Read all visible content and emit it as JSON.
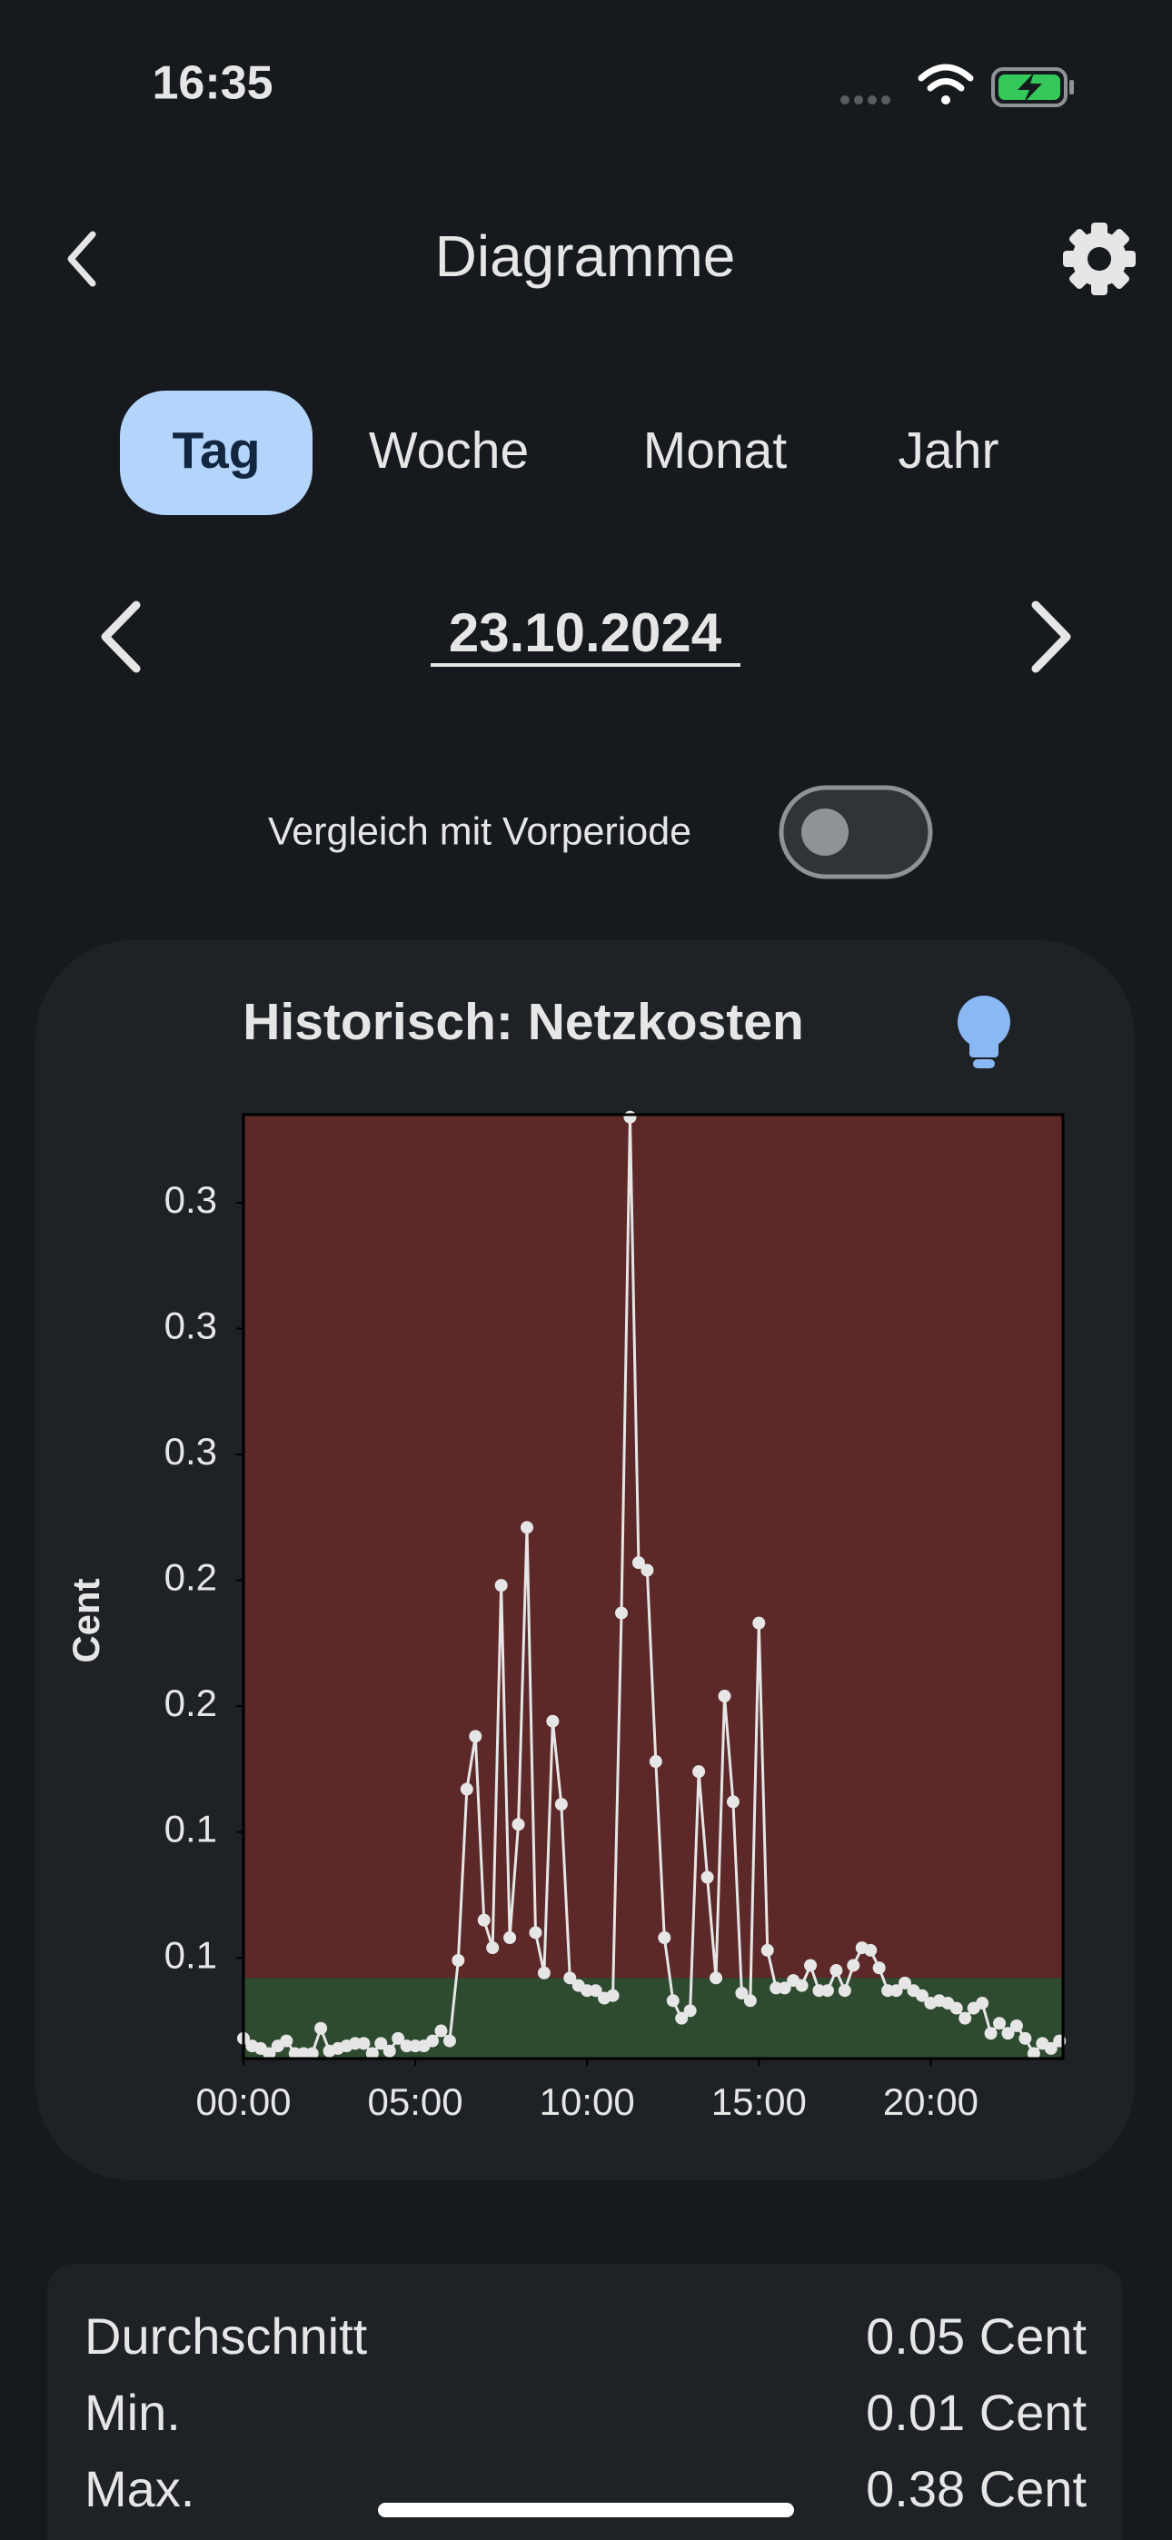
{
  "status": {
    "time": "16:35"
  },
  "header": {
    "title": "Diagramme"
  },
  "tabs": [
    "Tag",
    "Woche",
    "Monat",
    "Jahr"
  ],
  "date": "23.10.2024",
  "toggle": {
    "label": "Vergleich mit Vorperiode"
  },
  "chart_data": {
    "type": "line",
    "title": "Historisch: Netzkosten",
    "y_label": "Cent",
    "x": [
      0,
      0.25,
      0.5,
      0.75,
      1,
      1.25,
      1.5,
      1.75,
      2,
      2.25,
      2.5,
      2.75,
      3,
      3.25,
      3.5,
      3.75,
      4,
      4.25,
      4.5,
      4.75,
      5,
      5.25,
      5.5,
      5.75,
      6,
      6.25,
      6.5,
      6.75,
      7,
      7.25,
      7.5,
      7.75,
      8,
      8.25,
      8.5,
      8.75,
      9,
      9.25,
      9.5,
      9.75,
      10,
      10.25,
      10.5,
      10.75,
      11,
      11.25,
      11.5,
      11.75,
      12,
      12.25,
      12.5,
      12.75,
      13,
      13.25,
      13.5,
      13.75,
      14,
      14.25,
      14.5,
      14.75,
      15,
      15.25,
      15.5,
      15.75,
      16,
      16.25,
      16.5,
      16.75,
      17,
      17.25,
      17.5,
      17.75,
      18,
      18.25,
      18.5,
      18.75,
      19,
      19.25,
      19.5,
      19.75,
      20,
      20.25,
      20.5,
      20.75,
      21,
      21.25,
      21.5,
      21.75,
      22,
      22.25,
      22.5,
      22.75,
      23,
      23.25,
      23.5,
      23.75
    ],
    "series": [
      {
        "name": "Netzkosten",
        "color": "#e6e6e6",
        "values": [
          0.018,
          0.015,
          0.014,
          0.012,
          0.015,
          0.017,
          0.012,
          0.012,
          0.012,
          0.022,
          0.013,
          0.014,
          0.015,
          0.016,
          0.016,
          0.012,
          0.016,
          0.013,
          0.018,
          0.015,
          0.015,
          0.015,
          0.017,
          0.021,
          0.017,
          0.049,
          0.117,
          0.138,
          0.065,
          0.054,
          0.198,
          0.058,
          0.103,
          0.221,
          0.06,
          0.044,
          0.144,
          0.111,
          0.042,
          0.039,
          0.037,
          0.037,
          0.034,
          0.035,
          0.187,
          0.384,
          0.207,
          0.204,
          0.128,
          0.058,
          0.033,
          0.026,
          0.029,
          0.124,
          0.082,
          0.042,
          0.154,
          0.112,
          0.036,
          0.033,
          0.183,
          0.053,
          0.038,
          0.038,
          0.041,
          0.039,
          0.047,
          0.037,
          0.037,
          0.045,
          0.037,
          0.047,
          0.054,
          0.053,
          0.046,
          0.037,
          0.037,
          0.04,
          0.037,
          0.035,
          0.032,
          0.033,
          0.032,
          0.03,
          0.026,
          0.03,
          0.032,
          0.02,
          0.024,
          0.02,
          0.023,
          0.018,
          0.012,
          0.016,
          0.014,
          0.017
        ]
      }
    ],
    "xlim": [
      0,
      23.85
    ],
    "xticks": [
      {
        "value": 0,
        "label": "00:00"
      },
      {
        "value": 5,
        "label": "05:00"
      },
      {
        "value": 10,
        "label": "10:00"
      },
      {
        "value": 15,
        "label": "15:00"
      },
      {
        "value": 20,
        "label": "20:00"
      }
    ],
    "ylim": [
      0.01,
      0.385
    ],
    "yticks": [
      {
        "value": 0.05,
        "label": "0.1"
      },
      {
        "value": 0.1,
        "label": "0.1"
      },
      {
        "value": 0.15,
        "label": "0.2"
      },
      {
        "value": 0.2,
        "label": "0.2"
      },
      {
        "value": 0.25,
        "label": "0.3"
      },
      {
        "value": 0.3,
        "label": "0.3"
      },
      {
        "value": 0.35,
        "label": "0.3"
      }
    ],
    "grid": false,
    "threshold": 0.042,
    "below_color": "#2e4a2f",
    "above_color": "#5c2828"
  },
  "stats": [
    {
      "label": "Durchschnitt",
      "value": "0.05 Cent"
    },
    {
      "label": "Min.",
      "value": "0.01 Cent"
    },
    {
      "label": "Max.",
      "value": "0.38 Cent"
    }
  ]
}
